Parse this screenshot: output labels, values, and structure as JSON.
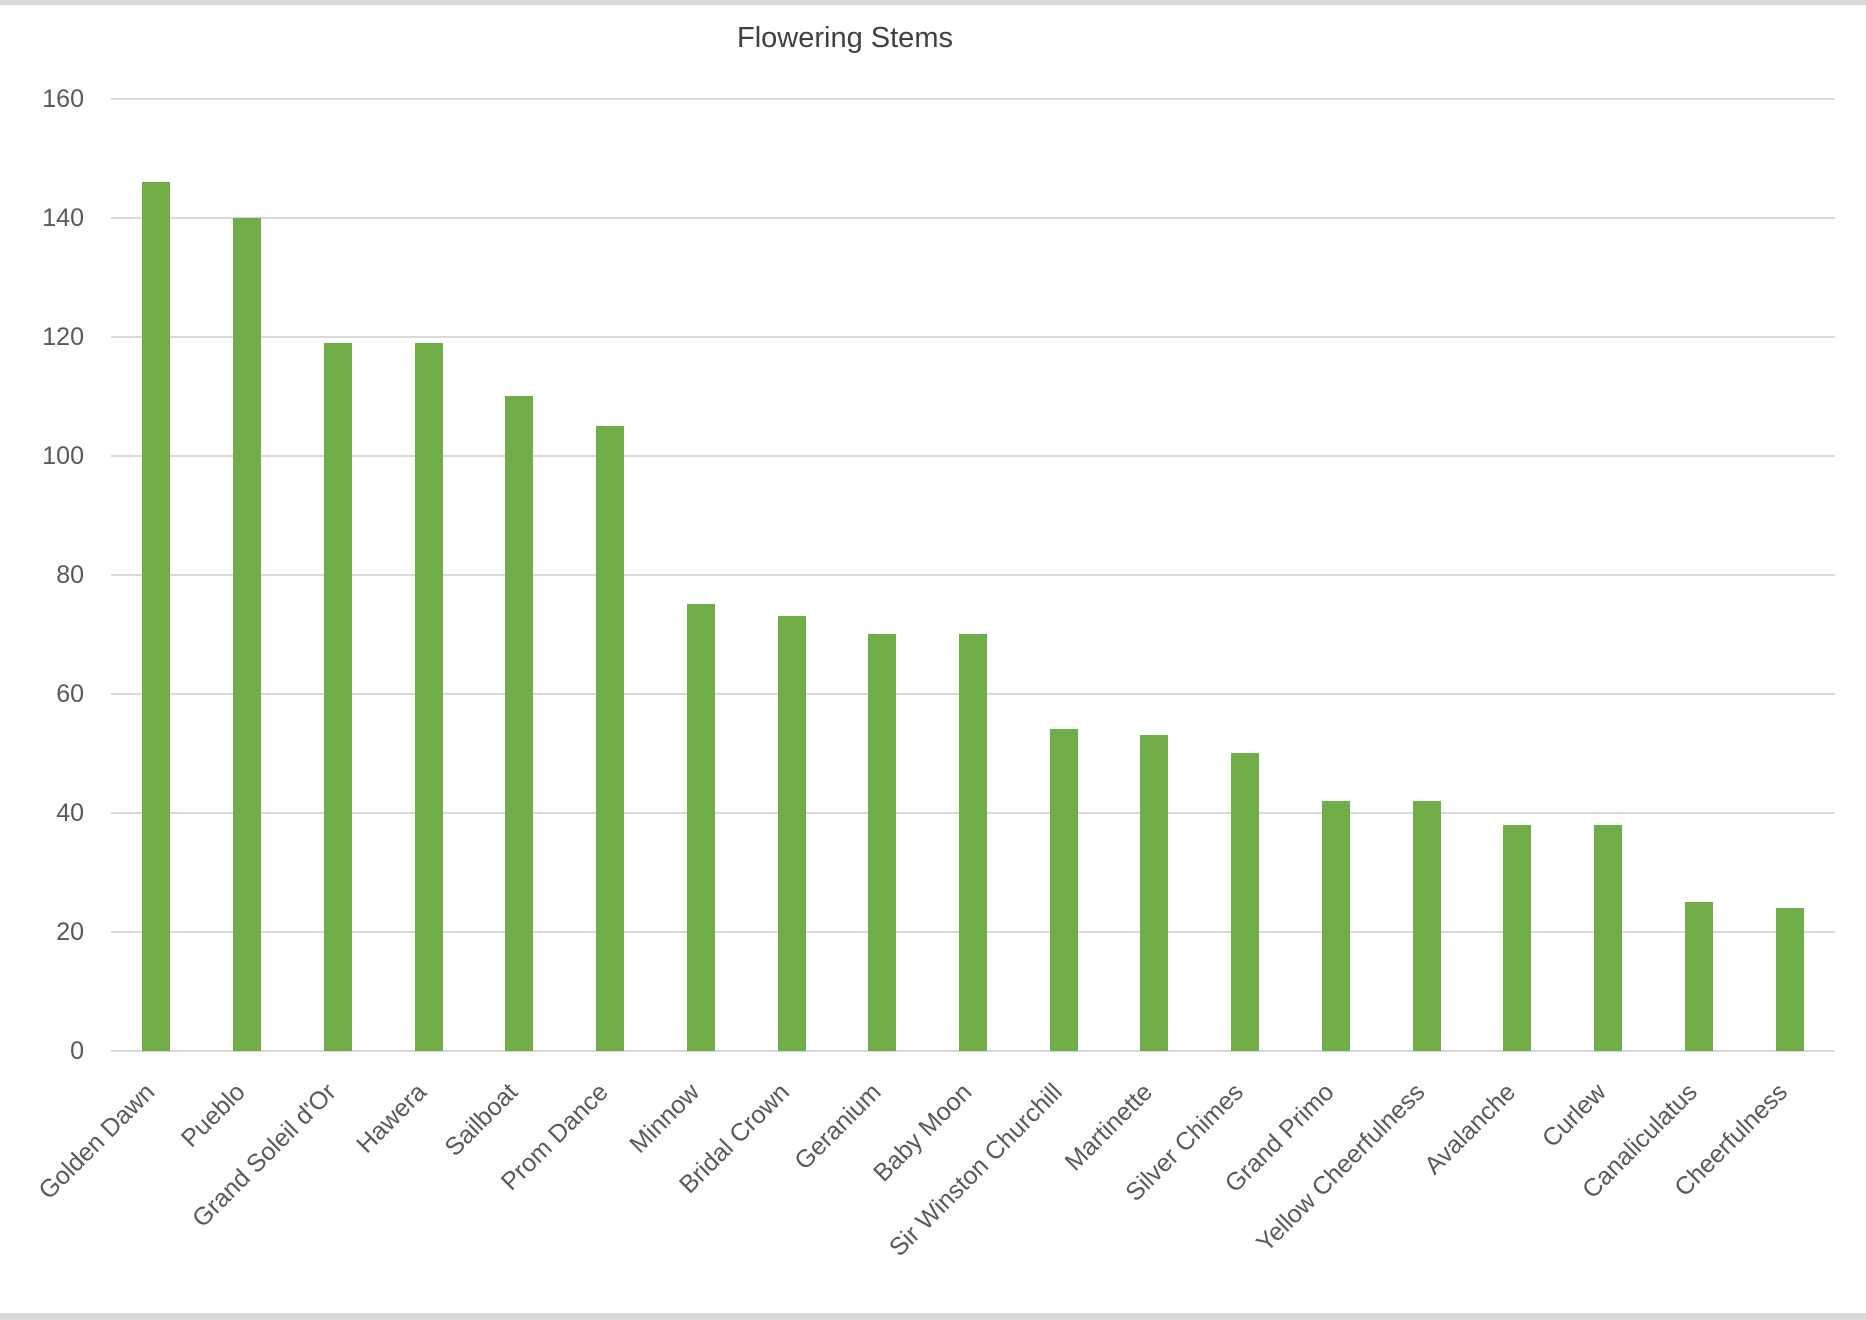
{
  "chart_data": {
    "type": "bar",
    "title": "Flowering Stems",
    "categories": [
      "Golden Dawn",
      "Pueblo",
      "Grand Soleil d'Or",
      "Hawera",
      "Sailboat",
      "Prom Dance",
      "Minnow",
      "Bridal Crown",
      "Geranium",
      "Baby Moon",
      "Sir Winston Churchill",
      "Martinette",
      "Silver Chimes",
      "Grand Primo",
      "Yellow Cheerfulness",
      "Avalanche",
      "Curlew",
      "Canaliculatus",
      "Cheerfulness"
    ],
    "values": [
      146,
      140,
      119,
      119,
      110,
      105,
      75,
      73,
      70,
      70,
      54,
      53,
      50,
      42,
      42,
      38,
      38,
      25,
      24
    ],
    "xlabel": "",
    "ylabel": "",
    "ylim": [
      0,
      160
    ],
    "ytick_step": 20,
    "ytick_labels": [
      "0",
      "20",
      "40",
      "60",
      "80",
      "100",
      "120",
      "140",
      "160"
    ],
    "grid": "horizontal",
    "legend": "none",
    "colors": {
      "bar": "#70ad47",
      "gridline": "#d9d9d9",
      "axis_text": "#595959",
      "title_text": "#404040",
      "edge_strip": "#d9d9d9"
    }
  }
}
